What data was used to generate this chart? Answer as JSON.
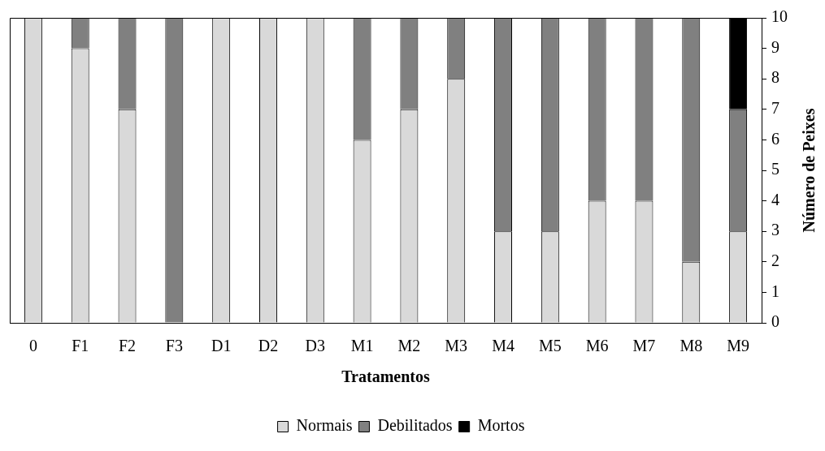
{
  "chart_data": {
    "type": "bar",
    "stacked": true,
    "xlabel": "Tratamentos",
    "ylabel": "Número de Peixes",
    "categories": [
      "0",
      "F1",
      "F2",
      "F3",
      "D1",
      "D2",
      "D3",
      "M1",
      "M2",
      "M3",
      "M4",
      "M5",
      "M6",
      "M7",
      "M8",
      "M9"
    ],
    "series": [
      {
        "name": "Normais",
        "color": "#d9d9d9",
        "values": [
          10,
          9,
          7,
          0,
          10,
          10,
          10,
          6,
          7,
          8,
          3,
          3,
          4,
          4,
          2,
          3
        ]
      },
      {
        "name": "Debilitados",
        "color": "#808080",
        "values": [
          0,
          1,
          3,
          10,
          0,
          0,
          0,
          4,
          3,
          2,
          7,
          7,
          6,
          6,
          8,
          4
        ]
      },
      {
        "name": "Mortos",
        "color": "#000000",
        "values": [
          0,
          0,
          0,
          0,
          0,
          0,
          0,
          0,
          0,
          0,
          0,
          0,
          0,
          0,
          0,
          3
        ]
      }
    ],
    "ylim": [
      0,
      10
    ],
    "yticks": [
      0,
      1,
      2,
      3,
      4,
      5,
      6,
      7,
      8,
      9,
      10
    ],
    "legend": "bottom"
  }
}
